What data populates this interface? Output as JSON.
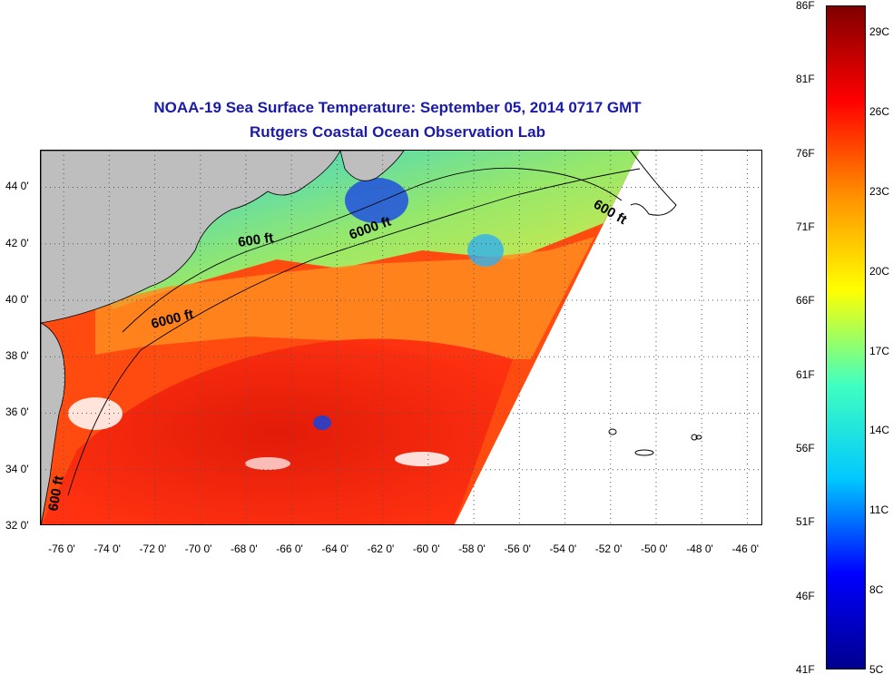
{
  "title": {
    "line1": "NOAA-19 Sea Surface Temperature:  September 05, 2014 0717 GMT",
    "line2": "Rutgers Coastal Ocean Observation Lab"
  },
  "map": {
    "lat_labels": [
      "44 0'",
      "42 0'",
      "40 0'",
      "38 0'",
      "36 0'",
      "34 0'",
      "32 0'"
    ],
    "lat_values": [
      44,
      42,
      40,
      38,
      36,
      34,
      32
    ],
    "lon_labels": [
      "-76 0'",
      "-74 0'",
      "-72 0'",
      "-70 0'",
      "-68 0'",
      "-66 0'",
      "-64 0'",
      "-62 0'",
      "-60 0'",
      "-58 0'",
      "-56 0'",
      "-54 0'",
      "-52 0'",
      "-50 0'",
      "-48 0'",
      "-46 0'"
    ],
    "lon_values": [
      -76,
      -74,
      -72,
      -70,
      -68,
      -66,
      -64,
      -62,
      -60,
      -58,
      -56,
      -54,
      -52,
      -50,
      -48,
      -46
    ],
    "lat_range": [
      32,
      45.3
    ],
    "lon_range": [
      -77,
      -45.3
    ],
    "contour_labels": [
      "600 ft",
      "6000 ft",
      "6000 ft",
      "600 ft",
      "600 ft"
    ],
    "grid": true
  },
  "colorbar": {
    "fahrenheit_labels": [
      "86F",
      "81F",
      "76F",
      "71F",
      "66F",
      "61F",
      "56F",
      "51F",
      "46F",
      "41F"
    ],
    "celsius_labels": [
      "29C",
      "26C",
      "23C",
      "20C",
      "17C",
      "14C",
      "11C",
      "8C",
      "5C"
    ],
    "range_c": [
      5,
      30
    ],
    "colors": [
      "#00008f",
      "#0000ff",
      "#00c8ff",
      "#40ffc0",
      "#ffff00",
      "#ff9000",
      "#ff0000",
      "#800000"
    ]
  },
  "colors": {
    "land": "#bebebe",
    "title": "#1a1aa8"
  }
}
